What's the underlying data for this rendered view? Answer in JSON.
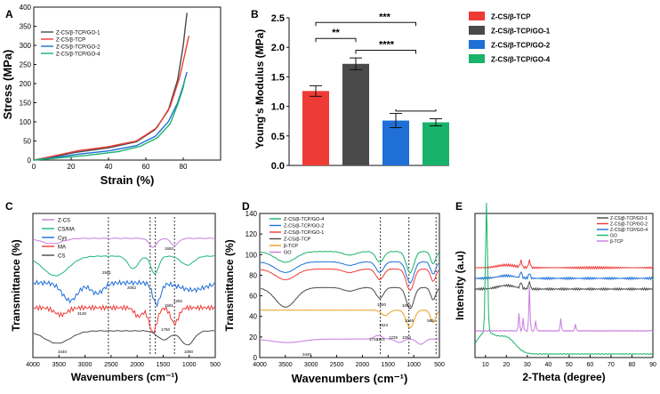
{
  "colors": {
    "red": "#ef3b36",
    "dark": "#4a4a4a",
    "blue": "#1f6fd6",
    "green": "#19b26b",
    "orange": "#e8a020",
    "purple": "#c77be0",
    "teal": "#1db587"
  },
  "chart_data": [
    {
      "panel": "A",
      "type": "line",
      "xlabel": "Strain (%)",
      "ylabel": "Stress (MPa)",
      "xlim": [
        0,
        100
      ],
      "ylim": [
        0,
        400
      ],
      "xticks": [
        "0",
        "20",
        "40",
        "60",
        "80"
      ],
      "yticks": [
        "0",
        "50",
        "100",
        "150",
        "200",
        "250",
        "300",
        "350",
        "400"
      ],
      "legend": [
        "Z-CS/β-TCP/GO-1",
        "Z-CS/β-TCP",
        "Z-CS/β-TCP/GO-2",
        "Z-CS/β-TCP/GO-4"
      ],
      "series": [
        {
          "name": "Z-CS/β-TCP/GO-1",
          "color": "#4a4a4a",
          "points": [
            [
              0,
              0
            ],
            [
              10,
              8
            ],
            [
              22,
              20
            ],
            [
              40,
              32
            ],
            [
              55,
              48
            ],
            [
              65,
              80
            ],
            [
              72,
              130
            ],
            [
              77,
              210
            ],
            [
              80,
              300
            ],
            [
              82,
              385
            ]
          ]
        },
        {
          "name": "Z-CS/β-TCP",
          "color": "#ef3b36",
          "points": [
            [
              0,
              0
            ],
            [
              10,
              10
            ],
            [
              24,
              25
            ],
            [
              40,
              35
            ],
            [
              55,
              50
            ],
            [
              66,
              85
            ],
            [
              73,
              140
            ],
            [
              78,
              215
            ],
            [
              81,
              280
            ],
            [
              83,
              325
            ]
          ]
        },
        {
          "name": "Z-CS/β-TCP/GO-2",
          "color": "#1f6fd6",
          "points": [
            [
              0,
              0
            ],
            [
              10,
              6
            ],
            [
              25,
              16
            ],
            [
              40,
              24
            ],
            [
              55,
              38
            ],
            [
              65,
              62
            ],
            [
              72,
              100
            ],
            [
              77,
              150
            ],
            [
              80,
              195
            ],
            [
              82,
              230
            ]
          ]
        },
        {
          "name": "Z-CS/β-TCP/GO-4",
          "color": "#19b26b",
          "points": [
            [
              0,
              0
            ],
            [
              12,
              5
            ],
            [
              28,
              12
            ],
            [
              45,
              22
            ],
            [
              57,
              36
            ],
            [
              66,
              58
            ],
            [
              73,
              95
            ],
            [
              77,
              145
            ],
            [
              80,
              190
            ],
            [
              81,
              215
            ]
          ]
        }
      ]
    },
    {
      "panel": "B",
      "type": "bar",
      "ylabel": "Young's Modulus (MPa)",
      "ylim": [
        0,
        2.5
      ],
      "yticks": [
        "0.0",
        "0.5",
        "1.0",
        "1.5",
        "2.0",
        "2.5"
      ],
      "categories": [
        "Z-CS/β-TCP",
        "Z-CS/β-TCP/GO-1",
        "Z-CS/β-TCP/GO-2",
        "Z-CS/β-TCP/GO-4"
      ],
      "values": [
        1.26,
        1.72,
        0.76,
        0.73
      ],
      "errors": [
        0.09,
        0.1,
        0.12,
        0.06
      ],
      "bar_colors": [
        "#ef3b36",
        "#4a4a4a",
        "#1f6fd6",
        "#19b26b"
      ],
      "significance": [
        "**",
        "***",
        "****"
      ]
    },
    {
      "panel": "C",
      "type": "line",
      "xlabel": "Wavenumbers (cm⁻¹)",
      "ylabel": "Transmittance (%)",
      "xlim": [
        4000,
        500
      ],
      "xticks": [
        "4000",
        "3500",
        "3000",
        "2500",
        "2000",
        "1500",
        "1000",
        "500"
      ],
      "legend": [
        "Z-CS",
        "CS/MA",
        "Cys",
        "MA",
        "CS"
      ],
      "annotations": [
        "3440",
        "2551",
        "3130",
        "2062",
        "1750",
        "1650",
        "1591",
        "1282",
        "1080"
      ]
    },
    {
      "panel": "D",
      "type": "line",
      "xlabel": "Wavenumbers (cm⁻¹)",
      "ylabel": "Transmittance (%)",
      "xlim": [
        4000,
        500
      ],
      "ylim": [
        0,
        140
      ],
      "xticks": [
        "4000",
        "3500",
        "3000",
        "2500",
        "2000",
        "1500",
        "1000",
        "500"
      ],
      "yticks": [
        "0",
        "20",
        "40",
        "60",
        "80",
        "100",
        "120",
        "140"
      ],
      "legend": [
        "Z-CS/β-TCP/GO-4",
        "Z-CS/β-TCP/GO-2",
        "Z-CS/β-TCP/GO-1",
        "Z-CS/β-TCP",
        "β-TCP",
        "GO"
      ],
      "annotations": [
        "1650",
        "1624",
        "1046",
        "1094",
        "565",
        "1732",
        "1621",
        "1225",
        "1094",
        "3440"
      ]
    },
    {
      "panel": "E",
      "type": "line",
      "xlabel": "2-Theta (degree)",
      "ylabel": "Intensity (a.u)",
      "xlim": [
        5,
        90
      ],
      "xticks": [
        "10",
        "20",
        "30",
        "40",
        "50",
        "60",
        "70",
        "80",
        "90"
      ],
      "legend": [
        "Z-CS@-TCP/GO-1",
        "Z-CS@-TCP/GO-2",
        "Z-CS@-TCP/GO-4",
        "GO",
        "β-TCP"
      ]
    }
  ],
  "panels": {
    "A": {
      "letter": "A",
      "xlabel": "Strain (%)",
      "ylabel": "Stress (MPa)"
    },
    "B": {
      "letter": "B",
      "ylabel": "Young's Modulus (MPa)"
    },
    "C": {
      "letter": "C",
      "xlabel": "Wavenumbers (cm⁻¹)",
      "ylabel": "Transmittance (%)"
    },
    "D": {
      "letter": "D",
      "xlabel": "Wavenumbers (cm⁻¹)",
      "ylabel": "Transmittance (%)"
    },
    "E": {
      "letter": "E",
      "xlabel": "2-Theta (degree)",
      "ylabel": "Intensity (a.u)"
    }
  }
}
